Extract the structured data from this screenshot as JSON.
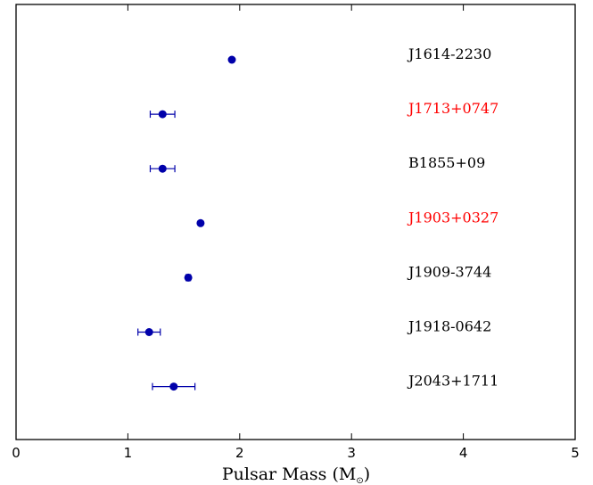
{
  "chart_data": {
    "type": "scatter",
    "xlabel": "Pulsar Mass (M",
    "xlabel_sub": "⊙",
    "xlabel_close": ")",
    "xlim": [
      0,
      5
    ],
    "xticks": [
      "0",
      "1",
      "2",
      "3",
      "4",
      "5"
    ],
    "grid": false,
    "marker_color": "#0000aa",
    "series": [
      {
        "points": [
          {
            "label": "J1614-2230",
            "x": 1.93,
            "err": 0.0,
            "label_color": "#000000"
          },
          {
            "label": "J1713+0747",
            "x": 1.31,
            "err": 0.11,
            "label_color": "#ff0000"
          },
          {
            "label": "B1855+09",
            "x": 1.31,
            "err": 0.11,
            "label_color": "#000000"
          },
          {
            "label": "J1903+0327",
            "x": 1.65,
            "err": 0.0,
            "label_color": "#ff0000"
          },
          {
            "label": "J1909-3744",
            "x": 1.54,
            "err": 0.02,
            "label_color": "#000000"
          },
          {
            "label": "J1918-0642",
            "x": 1.19,
            "err": 0.1,
            "label_color": "#000000"
          },
          {
            "label": "J2043+1711",
            "x": 1.41,
            "err": 0.19,
            "label_color": "#000000"
          }
        ]
      }
    ]
  }
}
